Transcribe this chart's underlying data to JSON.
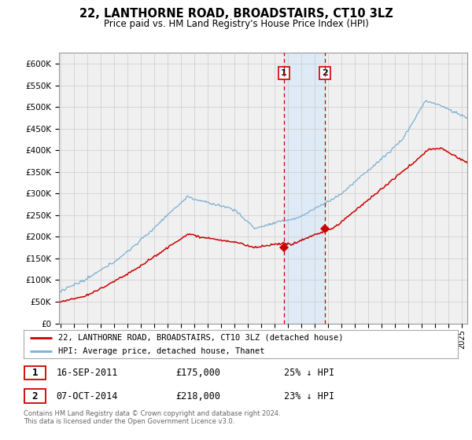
{
  "title": "22, LANTHORNE ROAD, BROADSTAIRS, CT10 3LZ",
  "subtitle": "Price paid vs. HM Land Registry's House Price Index (HPI)",
  "sale1_x": 2011.71,
  "sale1_y": 175000,
  "sale2_x": 2014.76,
  "sale2_y": 218000,
  "sale1_date": "16-SEP-2011",
  "sale1_price": "£175,000",
  "sale1_hpi": "25% ↓ HPI",
  "sale2_date": "07-OCT-2014",
  "sale2_price": "£218,000",
  "sale2_hpi": "23% ↓ HPI",
  "legend_line1": "22, LANTHORNE ROAD, BROADSTAIRS, CT10 3LZ (detached house)",
  "legend_line2": "HPI: Average price, detached house, Thanet",
  "footer": "Contains HM Land Registry data © Crown copyright and database right 2024.\nThis data is licensed under the Open Government Licence v3.0.",
  "line_color_red": "#cc0000",
  "line_color_blue": "#7aafd4",
  "shading_color": "#deeaf5",
  "grid_color": "#cccccc",
  "bg_color": "#f0f0f0",
  "yticks": [
    0,
    50000,
    100000,
    150000,
    200000,
    250000,
    300000,
    350000,
    400000,
    450000,
    500000,
    550000,
    600000
  ],
  "ylabels": [
    "£0",
    "£50K",
    "£100K",
    "£150K",
    "£200K",
    "£250K",
    "£300K",
    "£350K",
    "£400K",
    "£450K",
    "£500K",
    "£550K",
    "£600K"
  ],
  "ylim": [
    0,
    625000
  ],
  "xlim": [
    1994.9,
    2025.4
  ]
}
